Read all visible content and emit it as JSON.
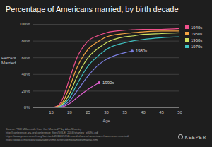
{
  "chart_data": {
    "type": "line",
    "title": "Percentage of Americans married, by birth decade",
    "x_label": "Age",
    "y_label": "Percent Married",
    "x": [
      15,
      17,
      18,
      20,
      22,
      25,
      28,
      30,
      35,
      37,
      40,
      45,
      50
    ],
    "series": [
      {
        "name": "1940s",
        "color": "#f0508c",
        "values": [
          0,
          3,
          10,
          35,
          60,
          80,
          87,
          90,
          93,
          93.5,
          94,
          94,
          95
        ]
      },
      {
        "name": "1950s",
        "color": "#f5a442",
        "values": [
          0,
          2,
          6,
          25,
          48,
          70,
          80,
          85,
          89,
          90,
          91,
          92,
          92
        ]
      },
      {
        "name": "1960s",
        "color": "#cfe060",
        "values": [
          0,
          1,
          4,
          17,
          37,
          60,
          72,
          78,
          85,
          86,
          88,
          89,
          90
        ]
      },
      {
        "name": "1970s",
        "color": "#40c4c4",
        "values": [
          0,
          1,
          3,
          12,
          28,
          50,
          63,
          70,
          78,
          80,
          82,
          84,
          85
        ]
      },
      {
        "name": "1980s",
        "color": "#7b7fe0",
        "values": [
          0,
          0,
          2,
          8,
          20,
          38,
          52,
          58,
          66,
          68,
          null,
          null,
          null
        ]
      },
      {
        "name": "1990s",
        "color": "#e060d0",
        "values": [
          0,
          0,
          1,
          5,
          12,
          22,
          30,
          null,
          null,
          null,
          null,
          null,
          null
        ]
      }
    ],
    "xlim": [
      10,
      50
    ],
    "xticks": [
      15,
      20,
      25,
      30,
      35,
      40,
      45,
      50
    ],
    "ylim": [
      0,
      100
    ],
    "yticks": [
      {
        "value": 0,
        "label": "0%"
      },
      {
        "value": 20,
        "label": "20%"
      },
      {
        "value": 40,
        "label": "40%"
      },
      {
        "value": 60,
        "label": "60%"
      },
      {
        "value": 80,
        "label": "80%"
      },
      {
        "value": 100,
        "label": "100%"
      }
    ],
    "grid": true,
    "legend": "right",
    "marker": "circle",
    "source": [
      "Source: \"Will Millennials Ever Get Married?\" by Alex Shanley",
      "http://conference.iza.org/conference_files/SOLE_2016/shanley_p8094.pdf",
      "https://www.pewresearch.org/fact-tank/2014/09/24/record-share-of-americans-have-never-married/",
      "https://www.census.gov/data/tables/time-series/demo/families/marital.html"
    ],
    "logo": "KEEPER"
  }
}
